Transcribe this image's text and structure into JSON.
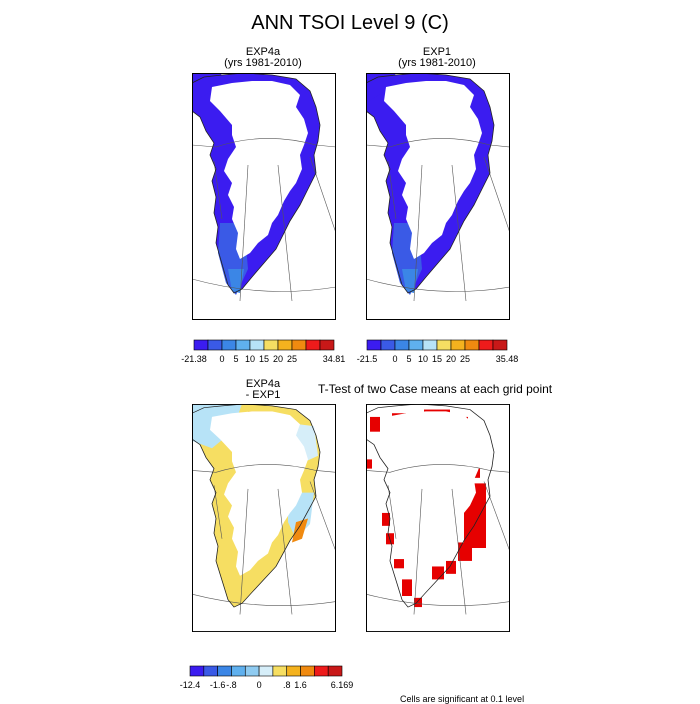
{
  "figure": {
    "title": "ANN TSOI Level 9 (C)",
    "ttest_title": "T-Test of two Case means at each grid point",
    "significance_note": "Cells are significant at 0.1 level"
  },
  "chart_data": [
    {
      "type": "heatmap",
      "title": "EXP4a",
      "subtitle": "(yrs 1981-2010)",
      "colorbar": {
        "ticks": [
          "-21.38",
          "0",
          "5",
          "10",
          "15",
          "20",
          "25",
          "34.81"
        ],
        "colors": [
          "#3b1cf0",
          "#3a5ae6",
          "#3b86e6",
          "#5fb0ee",
          "#b7e3f7",
          "#f6de62",
          "#f4b21e",
          "#f08a10",
          "#ee1b1b",
          "#c81818"
        ],
        "min": -21.38,
        "max": 34.81
      },
      "field_range": [
        -21.38,
        34.81
      ],
      "dominant_color": "#3b1cf0"
    },
    {
      "type": "heatmap",
      "title": "EXP1",
      "subtitle": "(yrs 1981-2010)",
      "colorbar": {
        "ticks": [
          "-21.5",
          "0",
          "5",
          "10",
          "15",
          "20",
          "25",
          "35.48"
        ],
        "colors": [
          "#3b1cf0",
          "#3a5ae6",
          "#3b86e6",
          "#5fb0ee",
          "#b7e3f7",
          "#f6de62",
          "#f4b21e",
          "#f08a10",
          "#ee1b1b",
          "#c81818"
        ],
        "min": -21.5,
        "max": 35.48
      },
      "field_range": [
        -21.5,
        35.48
      ],
      "dominant_color": "#3b1cf0"
    },
    {
      "type": "heatmap",
      "title": "EXP4a",
      "subtitle": "- EXP1",
      "colorbar": {
        "ticks": [
          "-12.4",
          "-1.6",
          "-.8",
          "0",
          ".8",
          "1.6",
          "6.169"
        ],
        "colors": [
          "#3b1cf0",
          "#3a5ae6",
          "#3b86e6",
          "#5fb0ee",
          "#8fcbf1",
          "#d6eef9",
          "#f6de62",
          "#f4b21e",
          "#f08a10",
          "#ee1b1b",
          "#c81818"
        ],
        "min": -12.4,
        "max": 6.169
      },
      "field_range": [
        -12.4,
        6.169
      ]
    },
    {
      "type": "heatmap",
      "title": "",
      "subtitle": "",
      "significant_color": "#e60000"
    }
  ]
}
